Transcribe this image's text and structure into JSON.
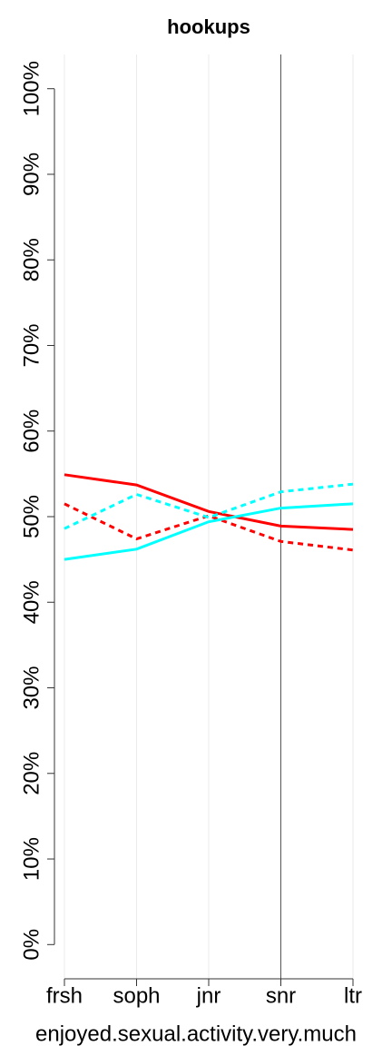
{
  "chart_data": {
    "type": "line",
    "title": "hookups",
    "x_label": "enjoyed.sexual.activity.very.much",
    "categories": [
      "frsh",
      "soph",
      "jnr",
      "snr",
      "ltr"
    ],
    "series": [
      {
        "color": "#ff0000",
        "dashed": false,
        "values": [
          54.9,
          53.7,
          50.6,
          48.9,
          48.5
        ]
      },
      {
        "color": "#ff0000",
        "dashed": true,
        "values": [
          51.5,
          47.4,
          50.1,
          47.1,
          46.1
        ]
      },
      {
        "color": "#00ffff",
        "dashed": false,
        "values": [
          45.0,
          46.2,
          49.4,
          51.0,
          51.5
        ]
      },
      {
        "color": "#00ffff",
        "dashed": true,
        "values": [
          48.6,
          52.6,
          49.9,
          52.9,
          53.8
        ]
      }
    ],
    "ylim": [
      -4,
      104
    ],
    "yticks": [
      {
        "value": 0,
        "label": "0%"
      },
      {
        "value": 10,
        "label": "10%"
      },
      {
        "value": 20,
        "label": "20%"
      },
      {
        "value": 30,
        "label": "30%"
      },
      {
        "value": 40,
        "label": "40%"
      },
      {
        "value": 50,
        "label": "50%"
      },
      {
        "value": 60,
        "label": "60%"
      },
      {
        "value": 70,
        "label": "70%"
      },
      {
        "value": 80,
        "label": "80%"
      },
      {
        "value": 90,
        "label": "90%"
      },
      {
        "value": 100,
        "label": "100%"
      }
    ],
    "grid": true,
    "highlight_index": 3
  }
}
